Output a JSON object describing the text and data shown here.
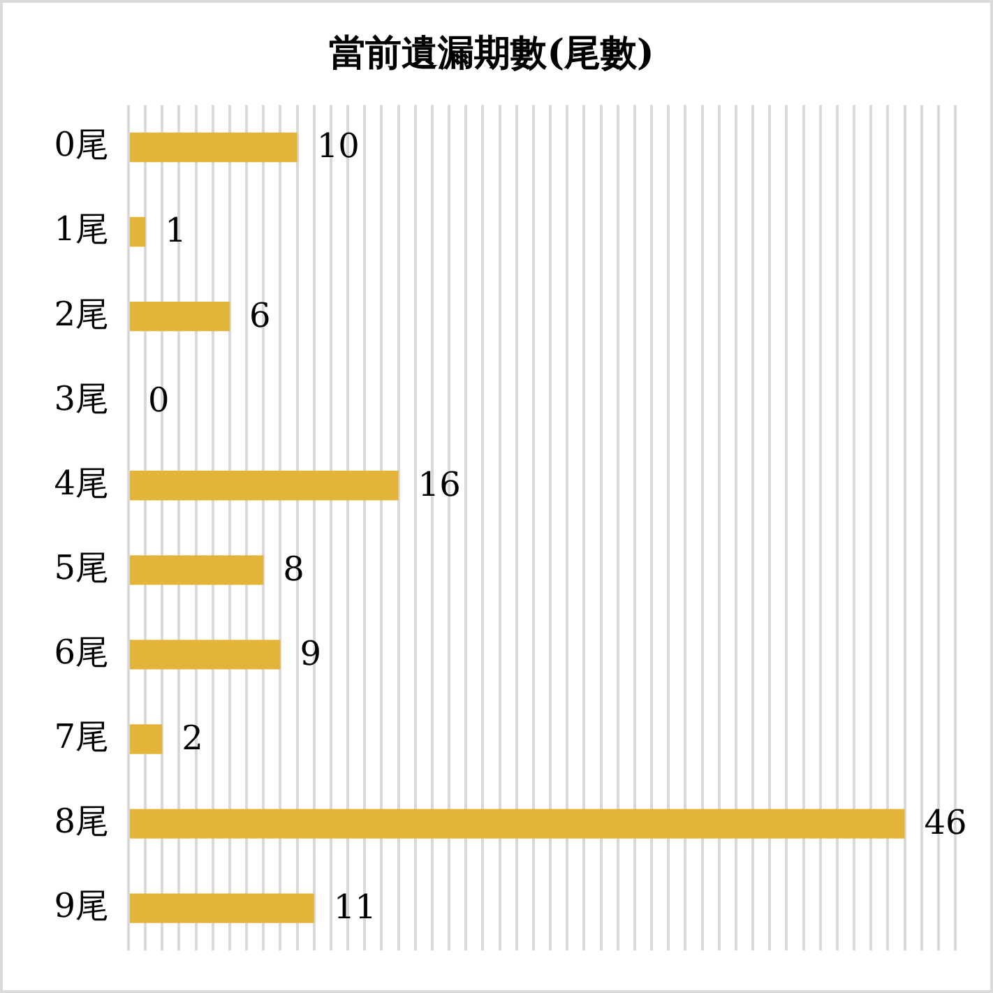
{
  "chart_data": {
    "type": "bar",
    "orientation": "horizontal",
    "title": "當前遺漏期數(尾數)",
    "categories": [
      "0尾",
      "1尾",
      "2尾",
      "3尾",
      "4尾",
      "5尾",
      "6尾",
      "7尾",
      "8尾",
      "9尾"
    ],
    "values": [
      10,
      1,
      6,
      0,
      16,
      8,
      9,
      2,
      46,
      11
    ],
    "color": "#e3b43a",
    "xlim": [
      0,
      49
    ],
    "xticks": [
      {
        "value": 0,
        "label": null
      },
      {
        "value": 1,
        "label": null
      },
      {
        "value": 2,
        "label": null
      },
      {
        "value": 3,
        "label": null
      },
      {
        "value": 4,
        "label": null
      },
      {
        "value": 5,
        "label": null
      },
      {
        "value": 6,
        "label": null
      },
      {
        "value": 7,
        "label": null
      },
      {
        "value": 8,
        "label": null
      },
      {
        "value": 9,
        "label": null
      },
      {
        "value": 10,
        "label": null
      },
      {
        "value": 11,
        "label": null
      },
      {
        "value": 12,
        "label": null
      },
      {
        "value": 13,
        "label": null
      },
      {
        "value": 14,
        "label": null
      },
      {
        "value": 15,
        "label": null
      },
      {
        "value": 16,
        "label": null
      },
      {
        "value": 17,
        "label": null
      },
      {
        "value": 18,
        "label": null
      },
      {
        "value": 19,
        "label": null
      },
      {
        "value": 20,
        "label": null
      },
      {
        "value": 21,
        "label": null
      },
      {
        "value": 22,
        "label": null
      },
      {
        "value": 23,
        "label": null
      },
      {
        "value": 24,
        "label": null
      },
      {
        "value": 25,
        "label": null
      },
      {
        "value": 26,
        "label": null
      },
      {
        "value": 27,
        "label": null
      },
      {
        "value": 28,
        "label": null
      },
      {
        "value": 29,
        "label": null
      },
      {
        "value": 30,
        "label": null
      },
      {
        "value": 31,
        "label": null
      },
      {
        "value": 32,
        "label": null
      },
      {
        "value": 33,
        "label": null
      },
      {
        "value": 34,
        "label": null
      },
      {
        "value": 35,
        "label": null
      },
      {
        "value": 36,
        "label": null
      },
      {
        "value": 37,
        "label": null
      },
      {
        "value": 38,
        "label": null
      },
      {
        "value": 39,
        "label": null
      },
      {
        "value": 40,
        "label": null
      },
      {
        "value": 41,
        "label": null
      },
      {
        "value": 42,
        "label": null
      },
      {
        "value": 43,
        "label": null
      },
      {
        "value": 44,
        "label": null
      },
      {
        "value": 45,
        "label": null
      },
      {
        "value": 46,
        "label": null
      },
      {
        "value": 47,
        "label": null
      },
      {
        "value": 48,
        "label": null
      },
      {
        "value": 49,
        "label": null
      }
    ],
    "grid": "x",
    "data_labels": true,
    "tick_labels": "y"
  }
}
